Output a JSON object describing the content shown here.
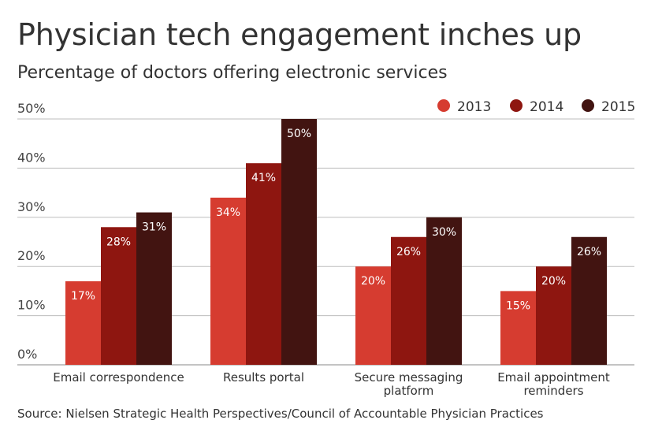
{
  "chart_data": {
    "type": "bar",
    "title": "Physician tech engagement inches up",
    "subtitle": "Percentage of doctors offering electronic services",
    "xlabel": "",
    "ylabel": "",
    "ylim": [
      0,
      50
    ],
    "yticks": [
      0,
      10,
      20,
      30,
      40,
      50
    ],
    "ytick_labels": [
      "0%",
      "10%",
      "20%",
      "30%",
      "40%",
      "50%"
    ],
    "grid": true,
    "legend_position": "top-right",
    "categories": [
      [
        "Email correspondence"
      ],
      [
        "Results portal"
      ],
      [
        "Secure messaging",
        "platform"
      ],
      [
        "Email appointment",
        "reminders"
      ]
    ],
    "series": [
      {
        "name": "2013",
        "color": "#d63c30",
        "values": [
          17,
          34,
          20,
          15
        ],
        "labels": [
          "17%",
          "34%",
          "20%",
          "15%"
        ]
      },
      {
        "name": "2014",
        "color": "#8e1610",
        "values": [
          28,
          41,
          26,
          20
        ],
        "labels": [
          "28%",
          "41%",
          "26%",
          "20%"
        ]
      },
      {
        "name": "2015",
        "color": "#421411",
        "values": [
          31,
          50,
          30,
          26
        ],
        "labels": [
          "31%",
          "50%",
          "30%",
          "26%"
        ]
      }
    ],
    "source": "Source: Nielsen Strategic Health Perspectives/Council of Accountable Physician Practices"
  }
}
